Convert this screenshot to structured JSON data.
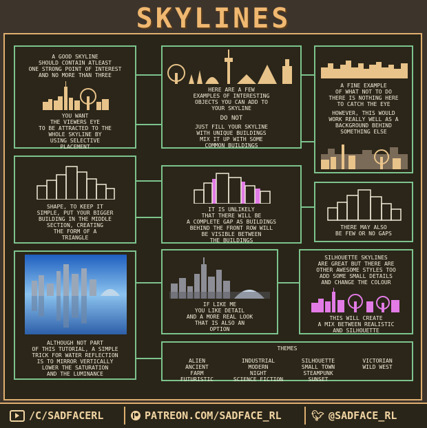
{
  "title": "SKYLINES",
  "panels": {
    "p1_top": "A GOOD SKYLINE\nSHOULD CONTAIN ATLEAST\nONE STRONG POINT OF INTEREST\nAND NO MORE THAN THREE",
    "p1_bottom": "YOU WANT\nTHE VIEWERS EYE\nTO BE ATTRACTED TO THE\nWHOLE SKYLINE BY\nUSING SELECTIVE\nPLACEMENT",
    "p2_top": "HERE ARE A FEW\nEXAMPLES OF INTERESTING\nOBJECTS YOU CAN ADD TO\nYOUR SKYLINE",
    "p2_donot": "DO NOT",
    "p2_bottom": "JUST FILL YOUR SKYLINE\nWITH UNIQUE BUILDINGS\nMIX IT UP WITH SOME\nCOMMON BUILDINGS",
    "p3_top": "A FINE EXAMPLE\nOF WHAT NOT TO DO\nTHERE IS NOTHING HERE\nTO CATCH THE EYE",
    "p3_bottom": "HOWEVER, THIS WOULD\nWORK REALLY WELL AS A\nBACKGROUND BEHIND\nSOMETHING ELSE",
    "p4": "SHAPE, TO KEEP IT\nSIMPLE, PUT YOUR BIGGER\nBUILDING IN THE MIDDLE\nSECTION, CREATING\nTHE FORM OF A\nTRIANGLE",
    "p5": "IT IS UNLIKELY\nTHAT THERE WILL BE\nA COMPLETE GAP AS BUILDINGS\nBEHIND THE FRONT ROW WILL\nBE VISIBLE BETWEEN\nTHE BUILDINGS",
    "p6": "THERE MAY ALSO\nBE FEW OR NO GAPS",
    "p7": "ALTHOUGH NOT PART\nOF THIS TUTORIAL, A SIMPLE\nTRICK FOR WATER REFLECTION\nIS TO MIRROR VERTICALLY\nLOWER THE SATURATION\nAND THE LUMINANCE",
    "p8": "IF LIKE ME\nYOU LIKE DETAIL\nAND A MORE REAL LOOK\nTHAT IS ALSO AN\nOPTION",
    "p9_top": "SILHOUETTE SKYLINES\nARE GREAT BUT THERE ARE\nOTHER AWESOME STYLES TOO\nADD SOME SMALL DETAILS\nAND CHANGE THE COLOUR",
    "p9_bottom": "THIS WILL CREATE\nA MIX BETWEEN REALISTIC\nAND SILHOUETTE"
  },
  "themes": {
    "heading": "THEMES",
    "col1": "ALIEN\nANCIENT\nFARM\nFUTURISTIC",
    "col2": "INDUSTRIAL\nMODERN\nNIGHT\nSCIENCE FICTION",
    "col3": "SILHOUETTE\nSMALL TOWN\nSTEAMPUNK\nSUNSET",
    "col4": "VICTORIAN\nWILD WEST"
  },
  "footer": {
    "youtube": "/C/SADFACERL",
    "patreon": "PATREON.COM/SADFACE_RL",
    "twitter": "@SADFACE_RL"
  },
  "colors": {
    "accent": "#f0b870",
    "panel_border": "#7dc48e",
    "silhouette": "#e8c38a",
    "pink": "#e27be6"
  }
}
